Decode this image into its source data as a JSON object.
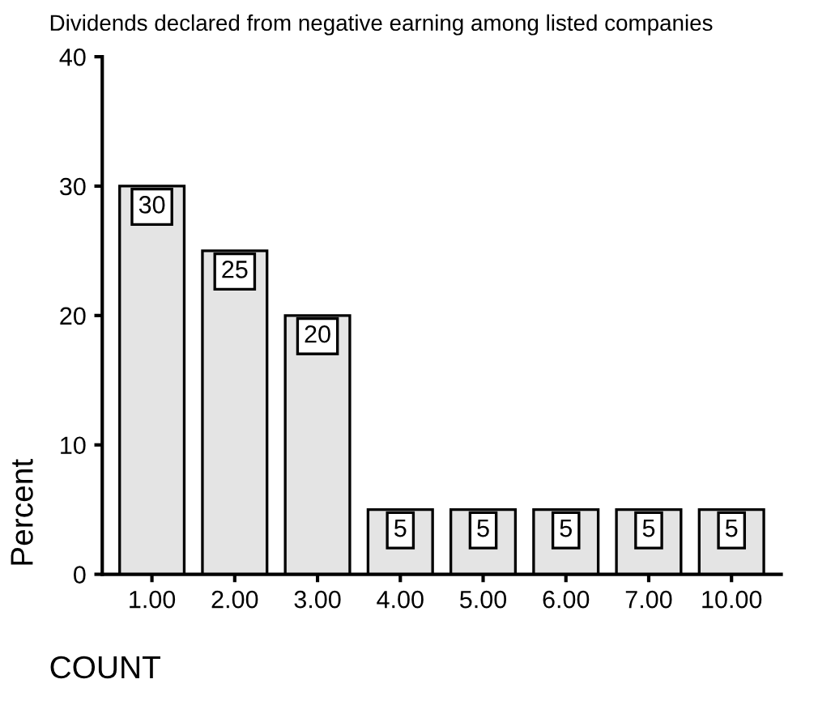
{
  "chart_data": {
    "type": "bar",
    "title": "Dividends declared from negative earning among listed companies",
    "xlabel": "COUNT",
    "ylabel": "Percent",
    "categories": [
      "1.00",
      "2.00",
      "3.00",
      "4.00",
      "5.00",
      "6.00",
      "7.00",
      "10.00"
    ],
    "values": [
      30,
      25,
      20,
      5,
      5,
      5,
      5,
      5
    ],
    "color": "#e4e4e4",
    "ylim": [
      0,
      40
    ],
    "yticks": [
      0,
      10,
      20,
      30,
      40
    ],
    "grid": false,
    "data_labels": true
  }
}
